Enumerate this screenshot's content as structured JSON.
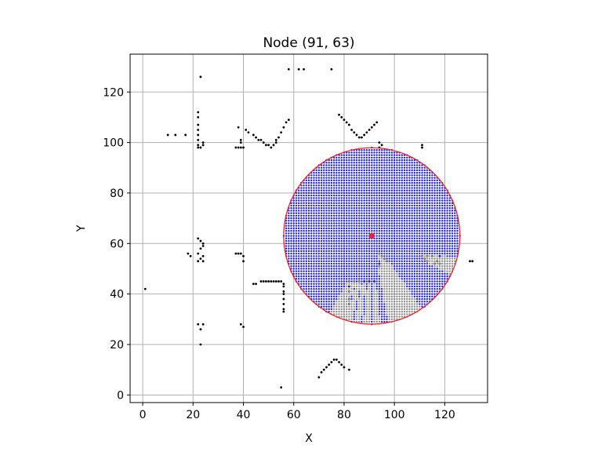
{
  "chart_data": {
    "type": "scatter",
    "title": "Node (91, 63)",
    "xlabel": "X",
    "ylabel": "Y",
    "xlim": [
      -5,
      137
    ],
    "ylim": [
      -3,
      135
    ],
    "xticks": [
      0,
      20,
      40,
      60,
      80,
      100,
      120
    ],
    "yticks": [
      0,
      20,
      40,
      60,
      80,
      100,
      120
    ],
    "grid": true,
    "node": {
      "x": 91,
      "y": 63,
      "color": "#e8262a"
    },
    "radius": 35,
    "circle_color": "#e8262a",
    "visible_color": "#1f1fe6",
    "occluded_color": "#8a8a8a",
    "obstacle_color": "#000000",
    "obstacles": [
      [
        1,
        42
      ],
      [
        10,
        103
      ],
      [
        13,
        103
      ],
      [
        17,
        103
      ],
      [
        22,
        112
      ],
      [
        22,
        110
      ],
      [
        22,
        107
      ],
      [
        22,
        105
      ],
      [
        22,
        103
      ],
      [
        22,
        101
      ],
      [
        22,
        99
      ],
      [
        22,
        98
      ],
      [
        23,
        98
      ],
      [
        24,
        99
      ],
      [
        24,
        100
      ],
      [
        23,
        126
      ],
      [
        22,
        62
      ],
      [
        23,
        61
      ],
      [
        24,
        60
      ],
      [
        24,
        59
      ],
      [
        23,
        58
      ],
      [
        22,
        56
      ],
      [
        24,
        55
      ],
      [
        23,
        54
      ],
      [
        24,
        53
      ],
      [
        22,
        53
      ],
      [
        18,
        56
      ],
      [
        19,
        55
      ],
      [
        22,
        28
      ],
      [
        24,
        28
      ],
      [
        23,
        26
      ],
      [
        23,
        20
      ],
      [
        37,
        98
      ],
      [
        38,
        98
      ],
      [
        39,
        98
      ],
      [
        40,
        98
      ],
      [
        39,
        100
      ],
      [
        39,
        101
      ],
      [
        38,
        106
      ],
      [
        37,
        56
      ],
      [
        38,
        56
      ],
      [
        39,
        56
      ],
      [
        40,
        55
      ],
      [
        40,
        53
      ],
      [
        39,
        28
      ],
      [
        40,
        27
      ],
      [
        41,
        105
      ],
      [
        42,
        104
      ],
      [
        44,
        103
      ],
      [
        45,
        102
      ],
      [
        46,
        101
      ],
      [
        47,
        101
      ],
      [
        48,
        100
      ],
      [
        49,
        99
      ],
      [
        50,
        99
      ],
      [
        51,
        98
      ],
      [
        52,
        99
      ],
      [
        53,
        100
      ],
      [
        53,
        101
      ],
      [
        54,
        102
      ],
      [
        55,
        104
      ],
      [
        56,
        106
      ],
      [
        57,
        108
      ],
      [
        58,
        109
      ],
      [
        44,
        44
      ],
      [
        45,
        44
      ],
      [
        47,
        45
      ],
      [
        48,
        45
      ],
      [
        49,
        45
      ],
      [
        50,
        45
      ],
      [
        51,
        45
      ],
      [
        52,
        45
      ],
      [
        53,
        45
      ],
      [
        54,
        45
      ],
      [
        55,
        45
      ],
      [
        56,
        44
      ],
      [
        56,
        43
      ],
      [
        56,
        41
      ],
      [
        56,
        40
      ],
      [
        56,
        38
      ],
      [
        56,
        36
      ],
      [
        56,
        34
      ],
      [
        56,
        33
      ],
      [
        55,
        3
      ],
      [
        58,
        129
      ],
      [
        62,
        129
      ],
      [
        64,
        129
      ],
      [
        75,
        129
      ],
      [
        70,
        7
      ],
      [
        71,
        9
      ],
      [
        72,
        10
      ],
      [
        73,
        11
      ],
      [
        74,
        12
      ],
      [
        75,
        13
      ],
      [
        76,
        14
      ],
      [
        77,
        14
      ],
      [
        78,
        13
      ],
      [
        79,
        12
      ],
      [
        80,
        11
      ],
      [
        82,
        10
      ],
      [
        78,
        111
      ],
      [
        79,
        110
      ],
      [
        80,
        109
      ],
      [
        81,
        108
      ],
      [
        82,
        107
      ],
      [
        83,
        105
      ],
      [
        84,
        104
      ],
      [
        85,
        103
      ],
      [
        86,
        102
      ],
      [
        87,
        102
      ],
      [
        88,
        103
      ],
      [
        89,
        104
      ],
      [
        90,
        105
      ],
      [
        91,
        106
      ],
      [
        92,
        107
      ],
      [
        93,
        108
      ],
      [
        82,
        45
      ],
      [
        84,
        45
      ],
      [
        86,
        45
      ],
      [
        88,
        45
      ],
      [
        90,
        45
      ],
      [
        92,
        45
      ],
      [
        82,
        43
      ],
      [
        82,
        41
      ],
      [
        82,
        38
      ],
      [
        82,
        36
      ],
      [
        94,
        100
      ],
      [
        95,
        99
      ],
      [
        94,
        98
      ],
      [
        94,
        56
      ],
      [
        95,
        55
      ],
      [
        96,
        54
      ],
      [
        97,
        53
      ],
      [
        94,
        52
      ],
      [
        94,
        51
      ],
      [
        111,
        99
      ],
      [
        111,
        98
      ],
      [
        111,
        55
      ],
      [
        112,
        54
      ],
      [
        113,
        53
      ],
      [
        113,
        55
      ],
      [
        115,
        55
      ],
      [
        116,
        52
      ],
      [
        117,
        53
      ],
      [
        118,
        52
      ],
      [
        118,
        55
      ],
      [
        130,
        53
      ],
      [
        131,
        53
      ]
    ],
    "visible_points": [],
    "occluded_points": []
  }
}
